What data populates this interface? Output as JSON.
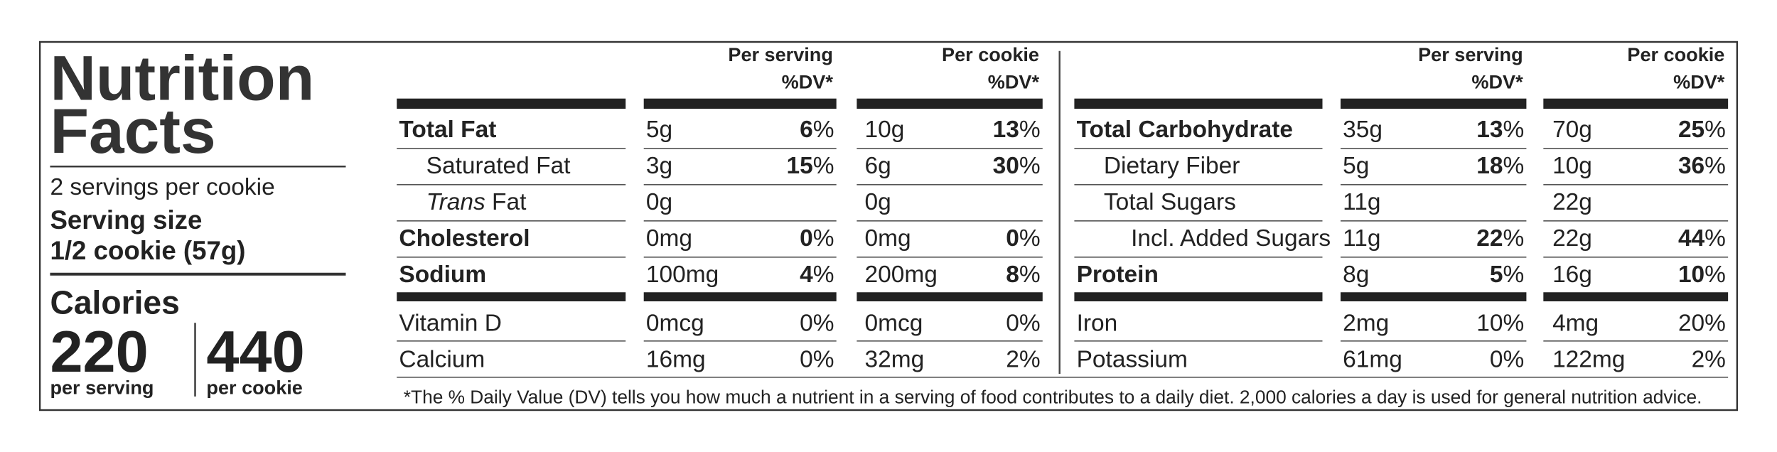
{
  "title": "Nutrition Facts",
  "servings": "2 servings per cookie",
  "serving_size_label": "Serving size",
  "serving_size": "1/2 cookie (57g)",
  "calories_label": "Calories",
  "calories": [
    {
      "amount": "220",
      "label": "per serving"
    },
    {
      "amount": "440",
      "label": "per cookie"
    }
  ],
  "tables": [
    {
      "columns": [
        {
          "label": "Per serving",
          "sub": "%DV*"
        },
        {
          "label": "Per cookie",
          "sub": "%DV*"
        }
      ],
      "rows": [
        {
          "name": "Total Fat",
          "bold": true,
          "indent": 0,
          "serving": [
            "5g",
            "6%"
          ],
          "cookie": [
            "10g",
            "13%"
          ]
        },
        {
          "name": "Saturated Fat",
          "bold": false,
          "indent": 1,
          "serving": [
            "3g",
            "15%"
          ],
          "cookie": [
            "6g",
            "30%"
          ]
        },
        {
          "name_italic": "Trans",
          "name": "Fat",
          "bold": false,
          "indent": 1,
          "serving": [
            "0g",
            null
          ],
          "cookie": [
            "0g",
            null
          ]
        },
        {
          "name": "Cholesterol",
          "bold": true,
          "indent": 0,
          "serving": [
            "0mg",
            "0%"
          ],
          "cookie": [
            "0mg",
            "0%"
          ]
        },
        {
          "name": "Sodium",
          "bold": true,
          "indent": 0,
          "serving": [
            "100mg",
            "4%"
          ],
          "cookie": [
            "200mg",
            "8%"
          ]
        }
      ],
      "minor_rows": [
        {
          "name": "Vitamin D",
          "serving": [
            "0mcg",
            "0%"
          ],
          "cookie": [
            "0mcg",
            "0%"
          ]
        },
        {
          "name": "Calcium",
          "serving": [
            "16mg",
            "0%"
          ],
          "cookie": [
            "32mg",
            "2%"
          ]
        }
      ]
    },
    {
      "columns": [
        {
          "label": "Per serving",
          "sub": "%DV*"
        },
        {
          "label": "Per cookie",
          "sub": "%DV*"
        }
      ],
      "rows": [
        {
          "name": "Total Carbohydrate",
          "bold": true,
          "indent": 0,
          "serving": [
            "35g",
            "13%"
          ],
          "cookie": [
            "70g",
            "25%"
          ]
        },
        {
          "name": "Dietary Fiber",
          "bold": false,
          "indent": 1,
          "serving": [
            "5g",
            "18%"
          ],
          "cookie": [
            "10g",
            "36%"
          ]
        },
        {
          "name": "Total Sugars",
          "bold": false,
          "indent": 1,
          "serving": [
            "11g",
            null
          ],
          "cookie": [
            "22g",
            null
          ]
        },
        {
          "name": "Incl. Added Sugars",
          "bold": false,
          "indent": 2,
          "serving": [
            "11g",
            "22%"
          ],
          "cookie": [
            "22g",
            "44%"
          ]
        },
        {
          "name": "Protein",
          "bold": true,
          "indent": 0,
          "serving": [
            "8g",
            "5%"
          ],
          "cookie": [
            "16g",
            "10%"
          ]
        }
      ],
      "minor_rows": [
        {
          "name": "Iron",
          "serving": [
            "2mg",
            "10%"
          ],
          "cookie": [
            "4mg",
            "20%"
          ]
        },
        {
          "name": "Potassium",
          "serving": [
            "61mg",
            "0%"
          ],
          "cookie": [
            "122mg",
            "2%"
          ]
        }
      ]
    }
  ],
  "footnote": "*The % Daily Value (DV) tells you how much a nutrient in a serving of food contributes to a daily diet. 2,000 calories a day is used for general nutrition advice."
}
